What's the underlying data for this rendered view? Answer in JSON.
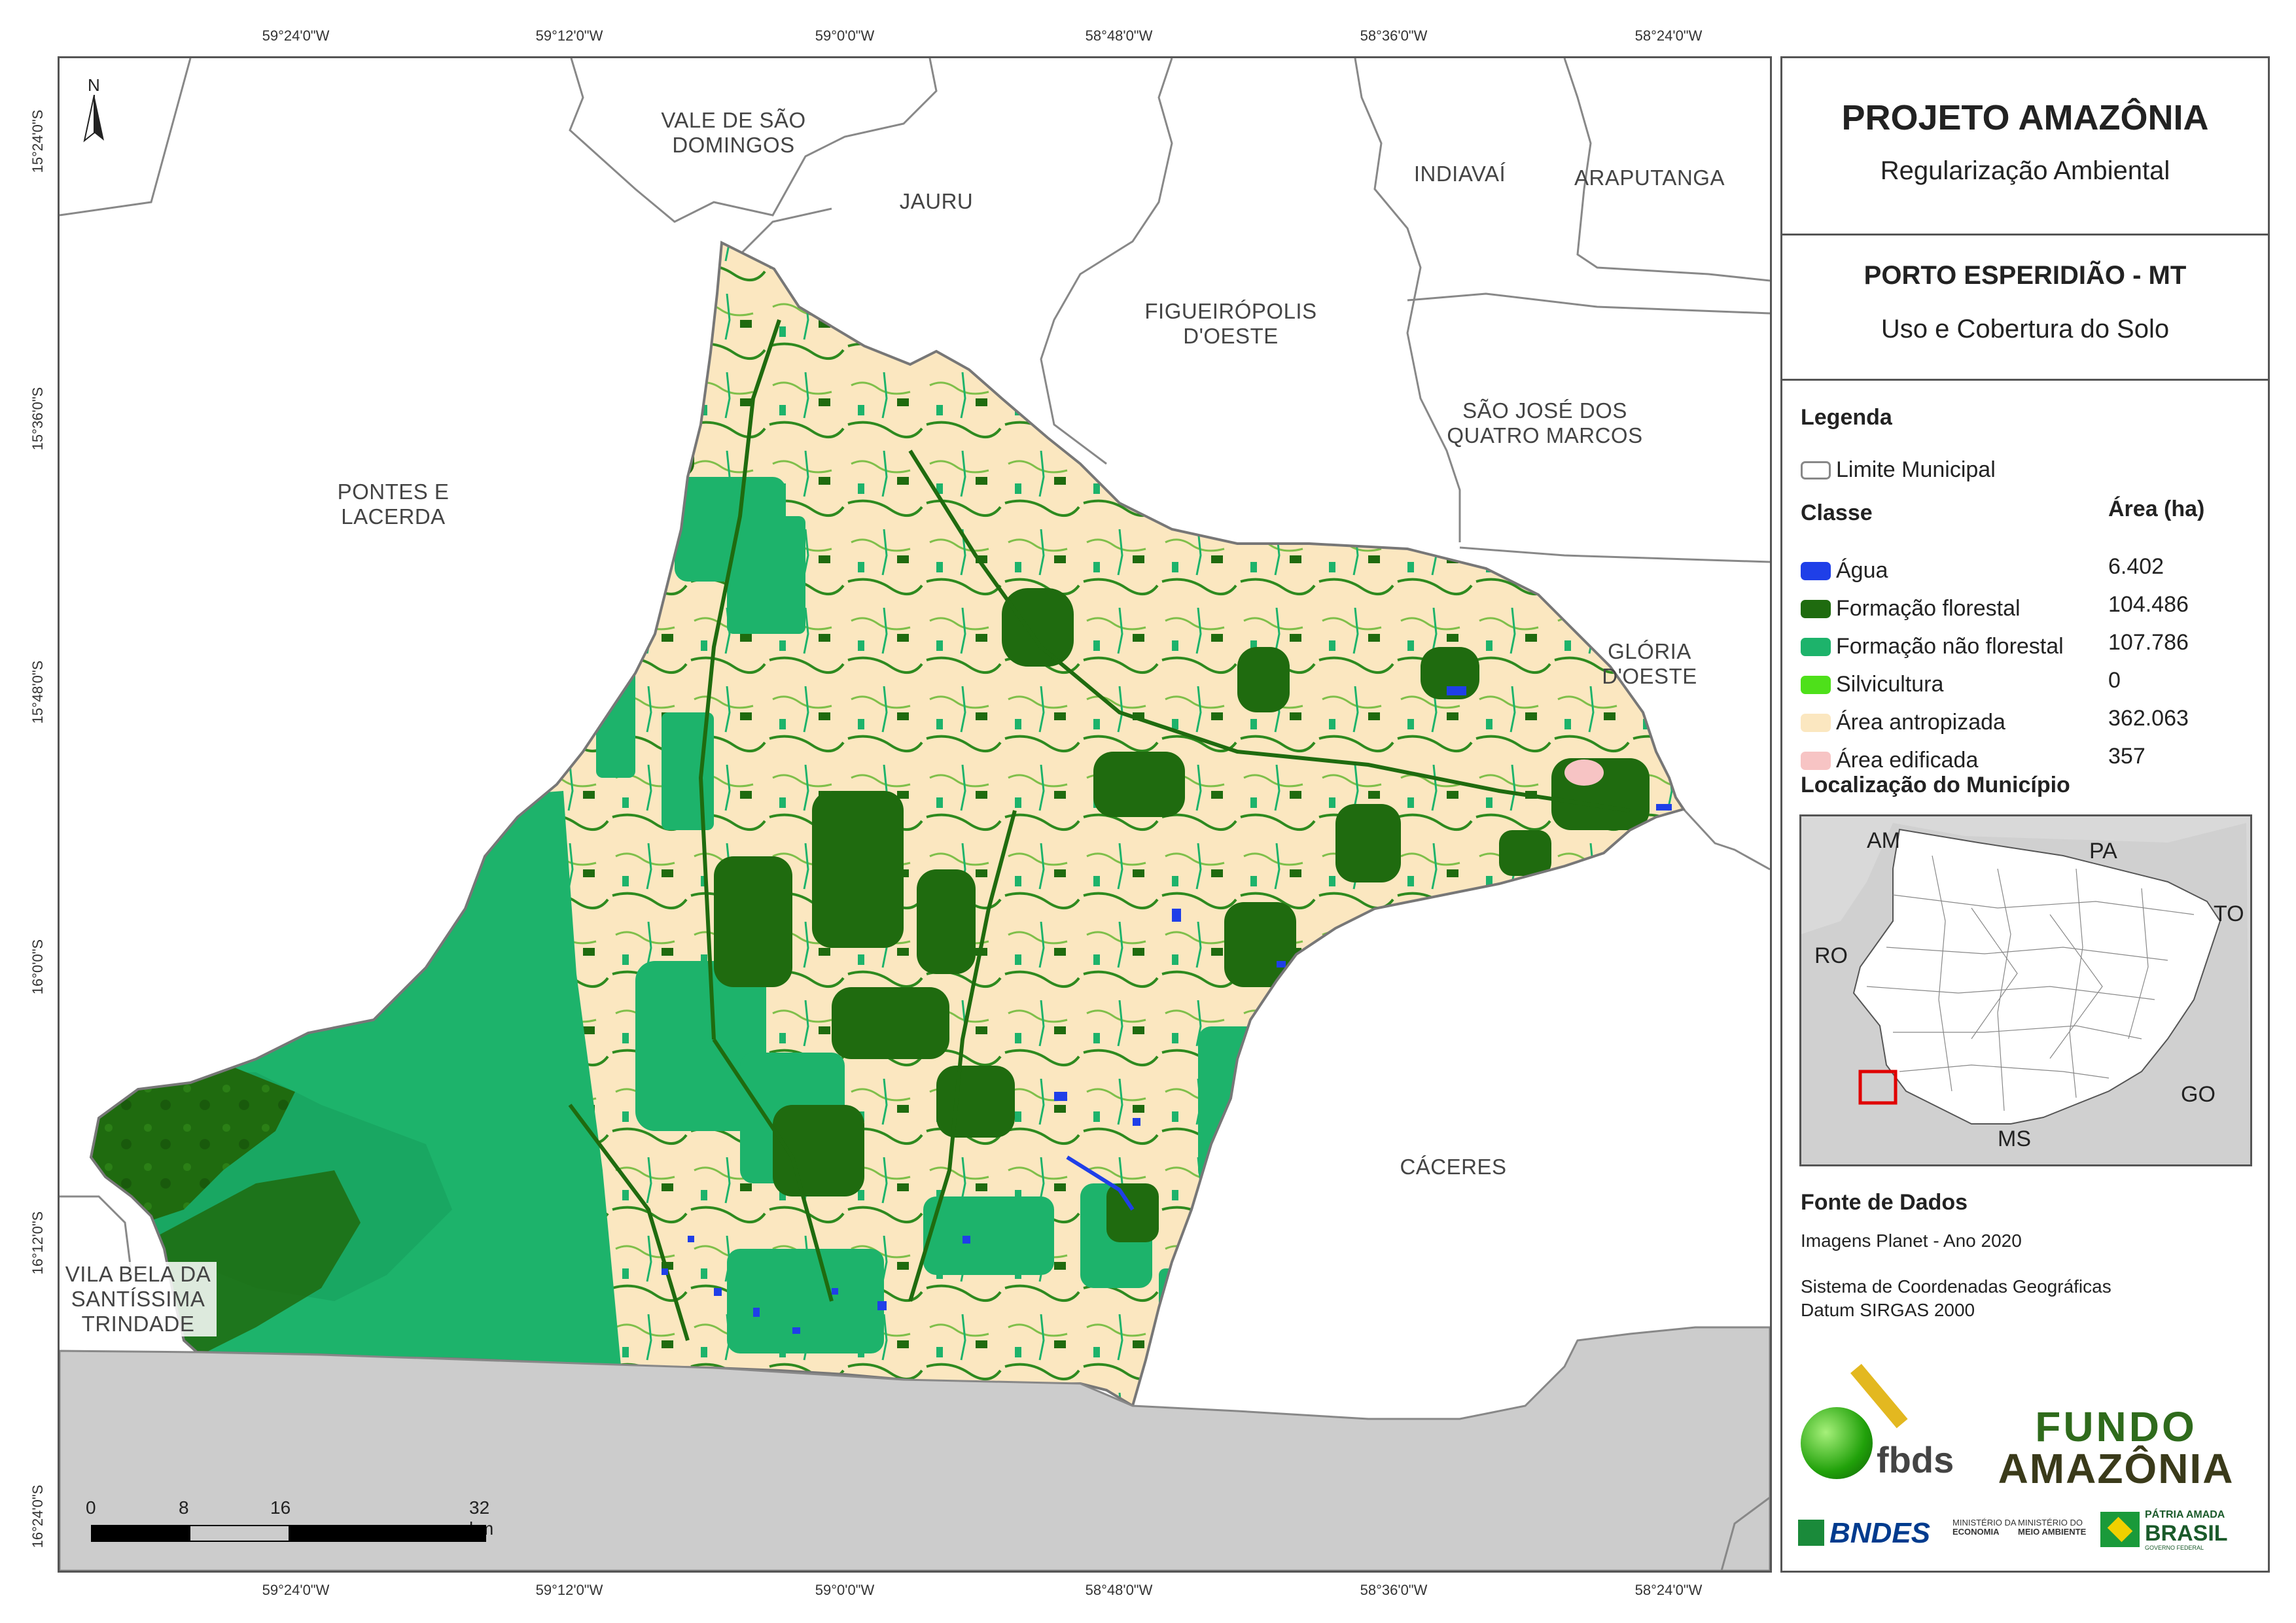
{
  "coordinates": {
    "top": [
      "59°24'0\"W",
      "59°12'0\"W",
      "59°0'0\"W",
      "58°48'0\"W",
      "58°36'0\"W",
      "58°24'0\"W"
    ],
    "bottom": [
      "59°24'0\"W",
      "59°12'0\"W",
      "59°0'0\"W",
      "58°48'0\"W",
      "58°36'0\"W",
      "58°24'0\"W"
    ],
    "left": [
      "15°24'0\"S",
      "15°36'0\"S",
      "15°48'0\"S",
      "16°0'0\"S",
      "16°12'0\"S",
      "16°24'0\"S"
    ]
  },
  "north_arrow": {
    "label": "N",
    "icon": "north-arrow-icon"
  },
  "municipalities": {
    "vale": "VALE DE SÃO\nDOMINGOS",
    "jauru": "JAURU",
    "indiavai": "INDIAVAÍ",
    "araputanga": "ARAPUTANGA",
    "figueiropolis": "FIGUEIRÓPOLIS\nD'OESTE",
    "sao_jose": "SÃO JOSÉ DOS\nQUATRO MARCOS",
    "pontes": "PONTES E\nLACERDA",
    "gloria": "GLÓRIA\nD'OESTE",
    "caceres": "CÁCERES",
    "vila_bela": "VILA BELA DA\nSANTÍSSIMA\nTRINDADE"
  },
  "scale_bar": {
    "ticks": [
      "0",
      "8",
      "16",
      "32 km"
    ]
  },
  "panel": {
    "title": "PROJETO AMAZÔNIA",
    "subtitle": "Regularização Ambiental",
    "municipality": "PORTO ESPERIDIÃO - MT",
    "theme": "Uso e Cobertura do Solo",
    "legend_title": "Legenda",
    "limit_label": "Limite Municipal",
    "class_header": "Classe",
    "area_header": "Área (ha)",
    "classes": [
      {
        "label": "Água",
        "area": "6.402",
        "color": "#1f3fe8"
      },
      {
        "label": "Formação florestal",
        "area": "104.486",
        "color": "#1f6b0f"
      },
      {
        "label": "Formação não florestal",
        "area": "107.786",
        "color": "#1db36b"
      },
      {
        "label": "Silvicultura",
        "area": "0",
        "color": "#4ee01a"
      },
      {
        "label": "Área antropizada",
        "area": "362.063",
        "color": "#fbe7c0"
      },
      {
        "label": "Área edificada",
        "area": "357",
        "color": "#f7c4c4"
      }
    ],
    "location_title": "Localização do Município",
    "inset_labels": {
      "am": "AM",
      "pa": "PA",
      "to": "TO",
      "ro": "RO",
      "go": "GO",
      "ms": "MS"
    },
    "source_title": "Fonte de Dados",
    "source_line1": "Imagens Planet - Ano 2020",
    "source_line2": "Sistema de Coordenadas Geográficas",
    "source_line3": "Datum SIRGAS 2000",
    "logos": {
      "fbds": "fbds",
      "fundo1": "FUNDO",
      "fundo2": "AMAZÔNIA",
      "bndes": "BNDES",
      "min_eco1": "MINISTÉRIO DA",
      "min_eco2": "ECONOMIA",
      "min_ma1": "MINISTÉRIO DO",
      "min_ma2": "MEIO AMBIENTE",
      "patria1": "PÁTRIA AMADA",
      "patria2": "BRASIL",
      "patria3": "GOVERNO FEDERAL"
    }
  },
  "colors": {
    "water": "#1f3fe8",
    "forest": "#1f6b0f",
    "nonforest": "#1db36b",
    "anthropic": "#fbe7c0",
    "built": "#f7c4c4",
    "outside": "#cccccc",
    "border": "#777777",
    "highlight": "#e00000"
  }
}
